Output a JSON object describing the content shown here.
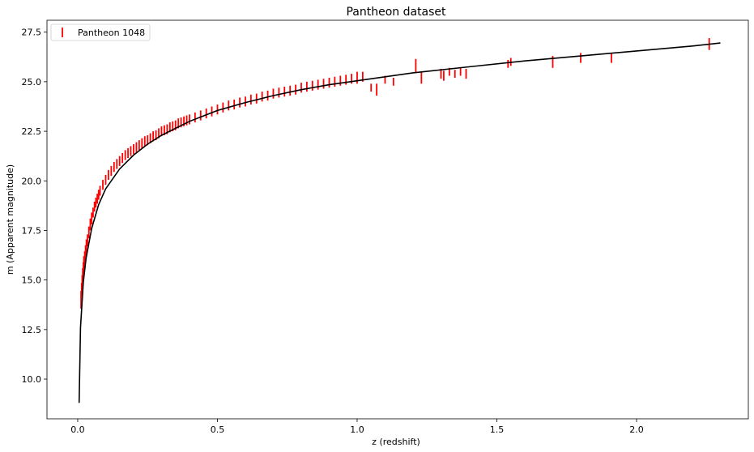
{
  "chart_data": {
    "type": "scatter",
    "title": "Pantheon dataset",
    "xlabel": "z (redshift)",
    "ylabel": "m (Apparent magnitude)",
    "xlim": [
      -0.11,
      2.4
    ],
    "ylim": [
      8.0,
      28.1
    ],
    "xticks": [
      0.0,
      0.5,
      1.0,
      1.5,
      2.0
    ],
    "xtick_labels": [
      "0.0",
      "0.5",
      "1.0",
      "1.5",
      "2.0"
    ],
    "yticks": [
      10.0,
      12.5,
      15.0,
      17.5,
      20.0,
      22.5,
      25.0,
      27.5
    ],
    "ytick_labels": [
      "10.0",
      "12.5",
      "15.0",
      "17.5",
      "20.0",
      "22.5",
      "25.0",
      "27.5"
    ],
    "grid": false,
    "legend_position": "top-left",
    "series": [
      {
        "name": "Pantheon 1048",
        "kind": "errorbar",
        "color": "#ff0000",
        "x": [
          0.012,
          0.014,
          0.016,
          0.018,
          0.02,
          0.022,
          0.025,
          0.028,
          0.031,
          0.035,
          0.04,
          0.045,
          0.05,
          0.055,
          0.06,
          0.065,
          0.07,
          0.075,
          0.08,
          0.09,
          0.1,
          0.11,
          0.12,
          0.13,
          0.14,
          0.15,
          0.16,
          0.17,
          0.18,
          0.19,
          0.2,
          0.21,
          0.22,
          0.23,
          0.24,
          0.25,
          0.26,
          0.27,
          0.28,
          0.29,
          0.3,
          0.31,
          0.32,
          0.33,
          0.34,
          0.35,
          0.36,
          0.37,
          0.38,
          0.39,
          0.4,
          0.42,
          0.44,
          0.46,
          0.48,
          0.5,
          0.52,
          0.54,
          0.56,
          0.58,
          0.6,
          0.62,
          0.64,
          0.66,
          0.68,
          0.7,
          0.72,
          0.74,
          0.76,
          0.78,
          0.8,
          0.82,
          0.84,
          0.86,
          0.88,
          0.9,
          0.92,
          0.94,
          0.96,
          0.98,
          1.0,
          1.02,
          1.05,
          1.07,
          1.1,
          1.13,
          1.21,
          1.23,
          1.3,
          1.31,
          1.33,
          1.35,
          1.37,
          1.39,
          1.54,
          1.55,
          1.7,
          1.8,
          1.91,
          2.26
        ],
        "y": [
          14.0,
          14.4,
          14.8,
          15.2,
          15.5,
          15.8,
          16.1,
          16.4,
          16.7,
          17.0,
          17.4,
          17.8,
          18.1,
          18.4,
          18.7,
          18.9,
          19.1,
          19.3,
          19.5,
          19.8,
          20.05,
          20.3,
          20.5,
          20.7,
          20.85,
          21.0,
          21.15,
          21.3,
          21.4,
          21.5,
          21.6,
          21.7,
          21.8,
          21.9,
          22.0,
          22.05,
          22.15,
          22.25,
          22.3,
          22.4,
          22.5,
          22.55,
          22.6,
          22.7,
          22.75,
          22.8,
          22.9,
          22.95,
          23.0,
          23.05,
          23.1,
          23.2,
          23.3,
          23.4,
          23.5,
          23.6,
          23.7,
          23.8,
          23.85,
          23.95,
          24.0,
          24.1,
          24.15,
          24.25,
          24.3,
          24.4,
          24.45,
          24.5,
          24.55,
          24.6,
          24.7,
          24.75,
          24.8,
          24.85,
          24.9,
          24.95,
          25.0,
          25.05,
          25.1,
          25.15,
          25.2,
          25.25,
          24.7,
          24.6,
          25.1,
          25.0,
          25.8,
          25.2,
          25.4,
          25.3,
          25.5,
          25.4,
          25.5,
          25.4,
          25.9,
          26.0,
          26.0,
          26.2,
          26.2,
          26.9
        ],
        "yerr": [
          0.45,
          0.45,
          0.45,
          0.4,
          0.4,
          0.4,
          0.35,
          0.35,
          0.35,
          0.3,
          0.3,
          0.3,
          0.3,
          0.25,
          0.25,
          0.25,
          0.25,
          0.25,
          0.25,
          0.25,
          0.25,
          0.25,
          0.25,
          0.25,
          0.25,
          0.25,
          0.25,
          0.25,
          0.25,
          0.25,
          0.25,
          0.25,
          0.25,
          0.25,
          0.25,
          0.25,
          0.25,
          0.25,
          0.25,
          0.25,
          0.25,
          0.25,
          0.25,
          0.25,
          0.25,
          0.25,
          0.25,
          0.25,
          0.25,
          0.25,
          0.25,
          0.25,
          0.25,
          0.25,
          0.25,
          0.25,
          0.25,
          0.25,
          0.25,
          0.25,
          0.25,
          0.25,
          0.25,
          0.25,
          0.25,
          0.25,
          0.25,
          0.25,
          0.25,
          0.25,
          0.25,
          0.25,
          0.25,
          0.25,
          0.25,
          0.25,
          0.25,
          0.25,
          0.25,
          0.25,
          0.3,
          0.25,
          0.2,
          0.3,
          0.2,
          0.2,
          0.35,
          0.3,
          0.25,
          0.25,
          0.2,
          0.2,
          0.2,
          0.25,
          0.2,
          0.2,
          0.3,
          0.25,
          0.25,
          0.3
        ]
      },
      {
        "kind": "line",
        "color": "#000000",
        "x": [
          0.005,
          0.01,
          0.02,
          0.03,
          0.05,
          0.075,
          0.1,
          0.15,
          0.2,
          0.25,
          0.3,
          0.4,
          0.5,
          0.6,
          0.7,
          0.8,
          0.9,
          1.0,
          1.2,
          1.4,
          1.6,
          1.8,
          2.0,
          2.2,
          2.3
        ],
        "y": [
          8.8,
          12.6,
          14.9,
          16.1,
          17.6,
          18.8,
          19.6,
          20.6,
          21.3,
          21.85,
          22.3,
          23.0,
          23.55,
          23.95,
          24.3,
          24.6,
          24.85,
          25.05,
          25.45,
          25.75,
          26.05,
          26.3,
          26.55,
          26.8,
          26.95
        ]
      }
    ]
  }
}
